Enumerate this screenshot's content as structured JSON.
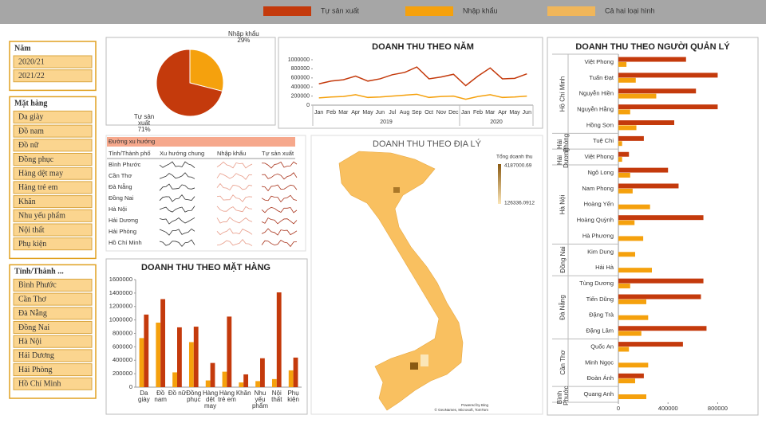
{
  "legend": [
    {
      "name": "Tự sản xuất",
      "color": "#c43a0c"
    },
    {
      "name": "Nhập khẩu",
      "color": "#f5a10d"
    },
    {
      "name": "Cả hai loại hình",
      "color": "#f0b65a"
    }
  ],
  "slicers": [
    {
      "title": "Năm",
      "items": [
        "2020/21",
        "2021/22"
      ]
    },
    {
      "title": "Mặt hàng",
      "items": [
        "Da giày",
        "Đồ nam",
        "Đồ nữ",
        "Đồng phục",
        "Hàng dệt may",
        "Hàng trẻ em",
        "Khăn",
        "Nhu yếu phẩm",
        "Nội thất",
        "Phụ kiện"
      ]
    },
    {
      "title": "Tỉnh/Thành ...",
      "items": [
        "Bình Phước",
        "Cần Thơ",
        "Đà Nẵng",
        "Đồng Nai",
        "Hà Nội",
        "Hải Dương",
        "Hải Phòng",
        "Hồ Chí Minh"
      ]
    }
  ],
  "trend_table": {
    "title": "Đường xu hướng",
    "columns": [
      "Tỉnh/Thành phố",
      "Xu hướng chung",
      "Nhập khẩu",
      "Tự sản xuất"
    ],
    "rows": [
      "Bình Phước",
      "Cần Thơ",
      "Đà Nẵng",
      "Đồng Nai",
      "Hà Nội",
      "Hải Dương",
      "Hải Phòng",
      "Hồ Chí Minh"
    ]
  },
  "map": {
    "title": "DOANH THU THEO ĐỊA LÝ",
    "legend_title": "Tổng doanh thu",
    "max": 4187000.69,
    "min": 126336.0912,
    "low_color": "#fbe6b8",
    "high_color": "#8a5a12",
    "fill": "#f9c060",
    "credits": [
      "Powered by Bing",
      "© GeoNames, Microsoft, TomTom"
    ]
  },
  "chart_data": [
    {
      "type": "pie",
      "categories": [
        "Nhập khẩu",
        "Tự sản xuất"
      ],
      "values": [
        29,
        71
      ],
      "value_labels": [
        "29%",
        "71%"
      ],
      "colors": [
        "#f5a10d",
        "#c43a0c"
      ]
    },
    {
      "type": "line",
      "title": "DOANH THU THEO NĂM",
      "category_groups": [
        {
          "name": "2019",
          "categories": [
            "Jan",
            "Feb",
            "Mar",
            "Apr",
            "May",
            "Jun",
            "Jul",
            "Aug",
            "Sep",
            "Oct",
            "Nov",
            "Dec"
          ]
        },
        {
          "name": "2020",
          "categories": [
            "Jan",
            "Feb",
            "Mar",
            "Apr",
            "May",
            "Jun"
          ]
        }
      ],
      "series": [
        {
          "color": "#c43a0c",
          "values": [
            470000,
            530000,
            560000,
            640000,
            530000,
            580000,
            670000,
            720000,
            840000,
            580000,
            620000,
            680000,
            430000,
            640000,
            820000,
            580000,
            590000,
            690000
          ]
        },
        {
          "color": "#f5a10d",
          "values": [
            160000,
            180000,
            190000,
            230000,
            170000,
            180000,
            200000,
            220000,
            240000,
            170000,
            190000,
            200000,
            130000,
            190000,
            230000,
            170000,
            180000,
            200000
          ]
        }
      ],
      "ylim": [
        0,
        1000000
      ],
      "yticks": [
        0,
        200000,
        400000,
        600000,
        800000,
        1000000
      ]
    },
    {
      "type": "bar",
      "title": "DOANH THU THEO MẶT HÀNG",
      "categories": [
        "Da giày",
        "Đồ nam",
        "Đồ nữ",
        "Đồng phục",
        "Hàng dệt may",
        "Hàng trẻ em",
        "Khăn",
        "Nhu yếu phẩm",
        "Nội thất",
        "Phụ kiện"
      ],
      "series": [
        {
          "color": "#f5a10d",
          "values": [
            730000,
            960000,
            220000,
            670000,
            100000,
            230000,
            70000,
            90000,
            120000,
            250000
          ]
        },
        {
          "color": "#c43a0c",
          "values": [
            1080000,
            1310000,
            890000,
            900000,
            360000,
            1050000,
            190000,
            430000,
            1410000,
            440000
          ]
        }
      ],
      "ylim": [
        0,
        1600000
      ],
      "yticks": [
        0,
        200000,
        400000,
        600000,
        800000,
        1000000,
        1200000,
        1400000,
        1600000
      ]
    },
    {
      "type": "hbar",
      "title": "DOANH THU THEO NGƯỜI QUẢN LÝ",
      "category_groups": [
        {
          "name": "Hồ Chí Minh",
          "categories": [
            "Việt Phong",
            "Tuấn Đạt",
            "Nguyễn Hiền",
            "Nguyễn Hằng",
            "Hồng Sơn"
          ]
        },
        {
          "name": "Hải Phòng",
          "categories": [
            "Tuệ Chi"
          ]
        },
        {
          "name": "Hải Dương",
          "categories": [
            "Việt Phong"
          ]
        },
        {
          "name": "Hà Nội",
          "categories": [
            "Ngô Long",
            "Nam Phong",
            "Hoàng Yến",
            "Hoàng Quỳnh",
            "Hà Phương"
          ]
        },
        {
          "name": "Đồng Nai",
          "categories": [
            "Kim Dung",
            "Hải Hà"
          ]
        },
        {
          "name": "Đà Nẵng",
          "categories": [
            "Tùng Dương",
            "Tiến Dũng",
            "Đặng Trà",
            "Đặng Lâm"
          ]
        },
        {
          "name": "Cần Thơ",
          "categories": [
            "Quốc An",
            "Minh Ngọc",
            "Đoàn Ánh"
          ]
        },
        {
          "name": "Bình Phước",
          "categories": [
            "Quang Anh"
          ]
        }
      ],
      "series": [
        {
          "color": "#c43a0c",
          "values": [
            545000,
            800000,
            625000,
            800000,
            450000,
            205000,
            85000,
            400000,
            485000,
            null,
            685000,
            null,
            null,
            null,
            685000,
            665000,
            null,
            710000,
            520000,
            null,
            205000,
            null
          ]
        },
        {
          "color": "#f5a10d",
          "values": [
            65000,
            140000,
            305000,
            95000,
            145000,
            30000,
            30000,
            95000,
            115000,
            255000,
            130000,
            200000,
            135000,
            270000,
            95000,
            225000,
            240000,
            185000,
            85000,
            240000,
            135000,
            225000
          ]
        }
      ],
      "xlim": [
        0,
        900000
      ],
      "xticks": [
        0,
        400000,
        800000
      ]
    }
  ]
}
